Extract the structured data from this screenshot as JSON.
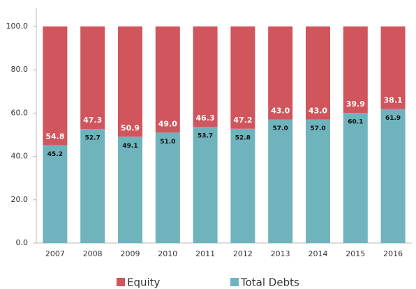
{
  "chart_data": {
    "type": "stacked_bar",
    "categories": [
      "2007",
      "2008",
      "2009",
      "2010",
      "2011",
      "2012",
      "2013",
      "2014",
      "2015",
      "2016"
    ],
    "series": [
      {
        "name": "Total Debts",
        "color": "#6fb3bd",
        "values": [
          45.2,
          52.7,
          49.1,
          51.0,
          53.7,
          52.8,
          57.0,
          57.0,
          60.1,
          61.9
        ],
        "value_labels": [
          "45.2",
          "52.7",
          "49.1",
          "51.0",
          "53.7",
          "52.8",
          "57.0",
          "57.0",
          "60.1",
          "61.9"
        ]
      },
      {
        "name": "Equity",
        "color": "#d0555c",
        "values": [
          54.8,
          47.3,
          50.9,
          49.0,
          46.3,
          47.2,
          43.0,
          43.0,
          39.9,
          38.1
        ],
        "value_labels": [
          "54.8",
          "47.3",
          "50.9",
          "49.0",
          "46.3",
          "47.2",
          "43.0",
          "43.0",
          "39.9",
          "38.1"
        ]
      }
    ],
    "ylim": [
      0,
      100
    ],
    "yticks": [
      {
        "value": 0,
        "label": "0.0"
      },
      {
        "value": 20,
        "label": "20.0"
      },
      {
        "value": 40,
        "label": "40.0"
      },
      {
        "value": 60,
        "label": "60.0"
      },
      {
        "value": 80,
        "label": "80.0"
      },
      {
        "value": 100,
        "label": "100.0"
      }
    ]
  }
}
